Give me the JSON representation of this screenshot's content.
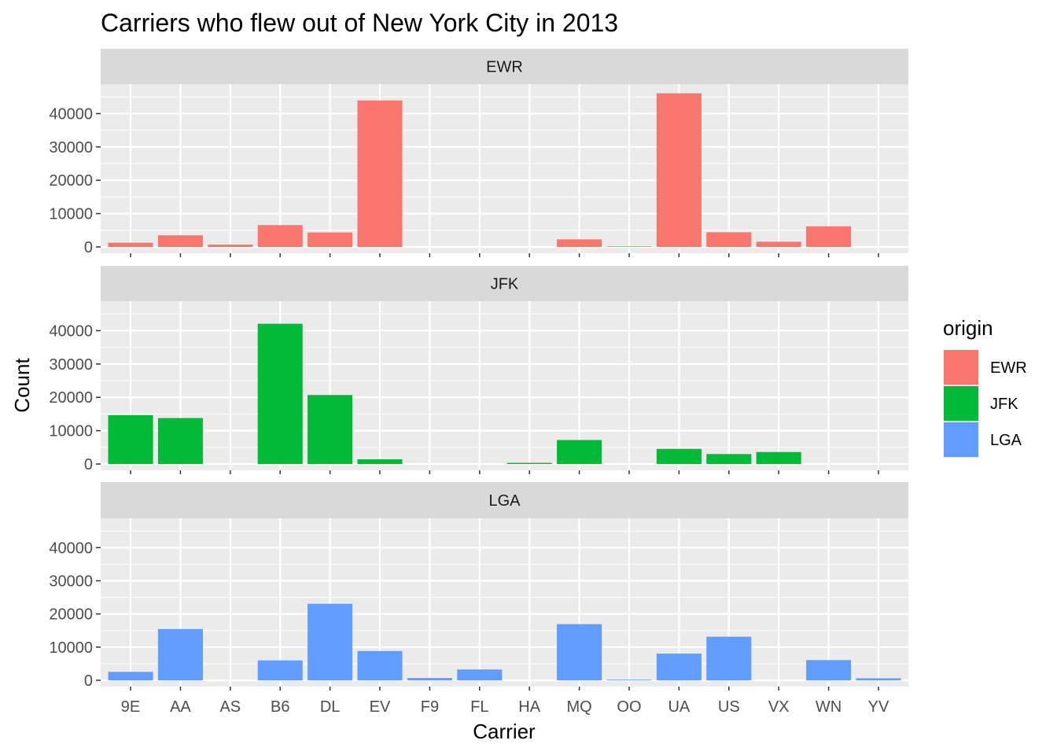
{
  "chart_data": {
    "type": "bar",
    "title": "Carriers who flew out of New York City in 2013",
    "xlabel": "Carrier",
    "ylabel": "Count",
    "categories": [
      "9E",
      "AA",
      "AS",
      "B6",
      "DL",
      "EV",
      "F9",
      "FL",
      "HA",
      "MQ",
      "OO",
      "UA",
      "US",
      "VX",
      "WN",
      "YV"
    ],
    "ylim": [
      0,
      47000
    ],
    "yticks": [
      0,
      10000,
      20000,
      30000,
      40000
    ],
    "ytick_labels": [
      "0",
      "10000",
      "20000",
      "30000",
      "40000"
    ],
    "facets": [
      {
        "name": "EWR",
        "color": "#F8766D",
        "values": [
          1268,
          3487,
          714,
          6557,
          4342,
          43939,
          0,
          0,
          0,
          2276,
          6,
          46087,
          4405,
          1566,
          6188,
          0
        ]
      },
      {
        "name": "JFK",
        "color": "#00BA38",
        "values": [
          14651,
          13783,
          0,
          42076,
          20701,
          1408,
          0,
          0,
          342,
          7193,
          0,
          4534,
          2995,
          3596,
          0,
          0
        ]
      },
      {
        "name": "LGA",
        "color": "#619CFF",
        "values": [
          2541,
          15459,
          0,
          6002,
          23067,
          8826,
          685,
          3260,
          0,
          16928,
          26,
          8044,
          13136,
          0,
          6087,
          601
        ]
      }
    ],
    "legend": {
      "title": "origin",
      "position": "right",
      "items": [
        {
          "label": "EWR",
          "color": "#F8766D"
        },
        {
          "label": "JFK",
          "color": "#00BA38"
        },
        {
          "label": "LGA",
          "color": "#619CFF"
        }
      ]
    },
    "grid": true
  }
}
